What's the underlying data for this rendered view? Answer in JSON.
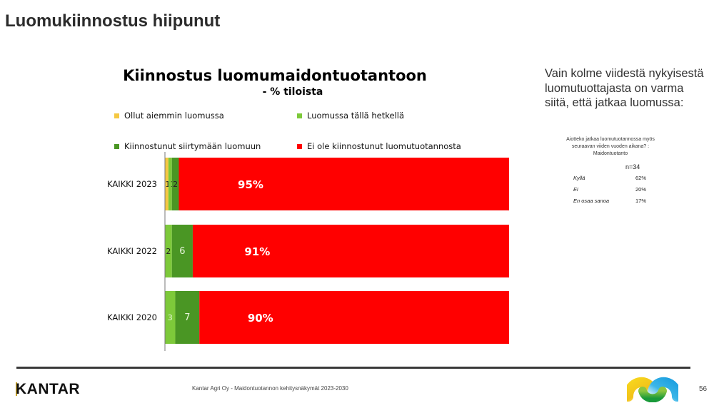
{
  "slide": {
    "title": "Luomukiinnostus hiipunut",
    "page_number": "56",
    "footer_text": "Kantar Agri Oy - Maidontuotannon kehitysnäkymät 2023-2030",
    "brand": "KANTAR"
  },
  "chart_data": {
    "type": "bar",
    "orientation": "horizontal",
    "stacked": true,
    "title": "Kiinnostus luomumaidontuotantoon",
    "subtitle": "- % tiloista",
    "xlabel": "",
    "ylabel": "",
    "xlim": [
      0,
      100
    ],
    "grid": false,
    "legend_position": "top",
    "categories": [
      "KAIKKI 2023",
      "KAIKKI 2022",
      "KAIKKI 2020"
    ],
    "series": [
      {
        "name": "Ollut aiemmin luomussa",
        "color": "#f5c842",
        "values": [
          1,
          0,
          0
        ],
        "labels": [
          "1",
          "0",
          "0"
        ]
      },
      {
        "name": "Luomussa tällä hetkellä",
        "color": "#7dc93a",
        "values": [
          1,
          2,
          3
        ],
        "labels": [
          "1",
          "2",
          "3"
        ]
      },
      {
        "name": "Kiinnostunut siirtymään luomuun",
        "color": "#4a9624",
        "values": [
          2,
          6,
          7
        ],
        "labels": [
          "2",
          "6",
          "7"
        ]
      },
      {
        "name": "Ei ole kiinnostunut luomutuotannosta",
        "color": "#ff0000",
        "values": [
          95,
          91,
          90
        ],
        "labels": [
          "95%",
          "91%",
          "90%"
        ]
      }
    ]
  },
  "note": {
    "heading": "Vain kolme viidestä nykyisestä luomutuottajasta on varma siitä, että jatkaa luomussa:",
    "question": "Aiotteko jatkaa luomutuotannossa myös seuraavan viiden vuoden aikana? : Maidontuotanto",
    "n": "n=34",
    "rows": [
      {
        "label": "Kyllä",
        "value": "62%"
      },
      {
        "label": "Ei",
        "value": "20%"
      },
      {
        "label": "En osaa sanoa",
        "value": "17%"
      }
    ]
  }
}
